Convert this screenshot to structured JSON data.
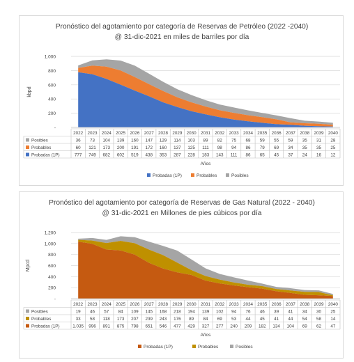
{
  "chart_data": [
    {
      "type": "area",
      "stacked": true,
      "title_line1": "Pronóstico del agotamiento por categoría de Reservas de Petróleo (2022 -2040)",
      "title_line2": "@ 31-dic-2021 en miles de barriles por día",
      "ylabel": "kbpd",
      "xlabel": "Años",
      "ylim": [
        0,
        1000
      ],
      "y_ticks": [
        "1.000",
        "800",
        "600",
        "400",
        "200",
        "-"
      ],
      "y_tick_values": [
        1000,
        800,
        600,
        400,
        200,
        0
      ],
      "categories": [
        "2022",
        "2023",
        "2024",
        "2025",
        "2026",
        "2027",
        "2028",
        "2029",
        "2030",
        "2031",
        "2032",
        "2033",
        "2034",
        "2035",
        "2036",
        "2037",
        "2038",
        "2039",
        "2040"
      ],
      "series": [
        {
          "name": "Probadas (1P)",
          "color": "#4472c4",
          "values": [
            777,
            749,
            682,
            602,
            519,
            438,
            353,
            287,
            228,
            183,
            143,
            111,
            86,
            65,
            45,
            37,
            24,
            16,
            12
          ],
          "labels": [
            "777",
            "749",
            "682",
            "602",
            "519",
            "438",
            "353",
            "287",
            "228",
            "183",
            "143",
            "111",
            "86",
            "65",
            "45",
            "37",
            "24",
            "16",
            "12"
          ]
        },
        {
          "name": "Probables",
          "color": "#ed7d31",
          "values": [
            60,
            121,
            173,
            200,
            191,
            172,
            160,
            137,
            125,
            111,
            98,
            94,
            86,
            79,
            69,
            34,
            35,
            35,
            25
          ],
          "labels": [
            "60",
            "121",
            "173",
            "200",
            "191",
            "172",
            "160",
            "137",
            "125",
            "111",
            "98",
            "94",
            "86",
            "79",
            "69",
            "34",
            "35",
            "35",
            "25"
          ]
        },
        {
          "name": "Posibles",
          "color": "#a5a5a5",
          "values": [
            36,
            73,
            104,
            139,
            160,
            147,
            129,
            114,
            103,
            89,
            82,
            75,
            68,
            59,
            55,
            59,
            35,
            31,
            28
          ],
          "labels": [
            "36",
            "73",
            "104",
            "139",
            "160",
            "147",
            "129",
            "114",
            "103",
            "89",
            "82",
            "75",
            "68",
            "59",
            "55",
            "59",
            "35",
            "31",
            "28"
          ]
        }
      ],
      "legend_position": "bottom",
      "grid": true
    },
    {
      "type": "area",
      "stacked": true,
      "title_line1": "Pronóstico del agotamiento por categoría de Reservas de Gas Natural (2022 - 2040)",
      "title_line2": "@ 31-dic-2021 en Millones de pies cúbicos por día",
      "ylabel": "Mpcd",
      "xlabel": "Años",
      "ylim": [
        0,
        1200
      ],
      "y_ticks": [
        "1.200",
        "1.000",
        "800",
        "600",
        "400",
        "200",
        "-"
      ],
      "y_tick_values": [
        1200,
        1000,
        800,
        600,
        400,
        200,
        0
      ],
      "categories": [
        "2022",
        "2023",
        "2024",
        "2025",
        "2026",
        "2027",
        "2028",
        "2029",
        "2030",
        "2031",
        "2032",
        "2033",
        "2034",
        "2035",
        "2036",
        "2037",
        "2038",
        "2039",
        "2040"
      ],
      "series": [
        {
          "name": "Probadas (1P)",
          "color": "#c55a11",
          "values": [
            1035,
            996,
            891,
            875,
            798,
            651,
            546,
            477,
            429,
            327,
            277,
            240,
            209,
            182,
            134,
            104,
            69,
            62,
            47
          ],
          "labels": [
            "1.035",
            "996",
            "891",
            "875",
            "798",
            "651",
            "546",
            "477",
            "429",
            "327",
            "277",
            "240",
            "209",
            "182",
            "134",
            "104",
            "69",
            "62",
            "47"
          ]
        },
        {
          "name": "Probables",
          "color": "#bf9000",
          "values": [
            33,
            58,
            118,
            173,
            207,
            239,
            243,
            176,
            89,
            84,
            69,
            53,
            44,
            45,
            41,
            44,
            54,
            58,
            14
          ],
          "labels": [
            "33",
            "58",
            "118",
            "173",
            "207",
            "239",
            "243",
            "176",
            "89",
            "84",
            "69",
            "53",
            "44",
            "45",
            "41",
            "44",
            "54",
            "58",
            "14"
          ]
        },
        {
          "name": "Posibles",
          "color": "#a5a5a5",
          "values": [
            19,
            46,
            57,
            84,
            109,
            145,
            168,
            218,
            194,
            139,
            102,
            94,
            76,
            46,
            39,
            41,
            34,
            30,
            25
          ],
          "labels": [
            "19",
            "46",
            "57",
            "84",
            "109",
            "145",
            "168",
            "218",
            "194",
            "139",
            "102",
            "94",
            "76",
            "46",
            "39",
            "41",
            "34",
            "30",
            "25"
          ]
        }
      ],
      "legend_position": "bottom",
      "grid": true
    }
  ]
}
